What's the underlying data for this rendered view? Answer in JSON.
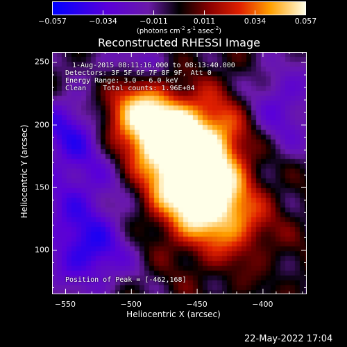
{
  "colorbar": {
    "ticks": [
      "-0.057",
      "-0.034",
      "-0.011",
      "0.011",
      "0.034",
      "0.057"
    ],
    "units_prefix": "(photons cm",
    "units_exp1": "-2",
    "units_mid1": " s",
    "units_exp2": "-1",
    "units_mid2": " asec",
    "units_exp3": "-2",
    "units_suffix": ")"
  },
  "chart_data": {
    "type": "heatmap",
    "title": "Reconstructed RHESSI Image",
    "xlabel": "Heliocentric X (arcsec)",
    "ylabel": "Heliocentric Y (arcsec)",
    "xlim": [
      -560,
      -367
    ],
    "ylim": [
      65,
      258
    ],
    "x_ticks": [
      -550,
      -500,
      -450,
      -400
    ],
    "y_ticks": [
      100,
      150,
      200,
      250
    ],
    "x_tick_labels": [
      "−550",
      "−500",
      "−450",
      "−400"
    ],
    "y_tick_labels": [
      "100",
      "150",
      "200",
      "250"
    ],
    "value_range": [
      -0.057,
      0.057
    ],
    "peak": [
      -462,
      168
    ],
    "annotations": [
      "1-Aug-2015 08:11:16.000 to 08:13:40.000",
      "Detectors: 3F 5F 6F 7F 8F 9F, Att 0",
      "Energy Range: 3.0 - 6.0 keV",
      "Clean    Total counts: 1.96E+04"
    ],
    "peak_label": "Position of Peak = [-462,168]"
  },
  "timestamp": "22-May-2022 17:04"
}
